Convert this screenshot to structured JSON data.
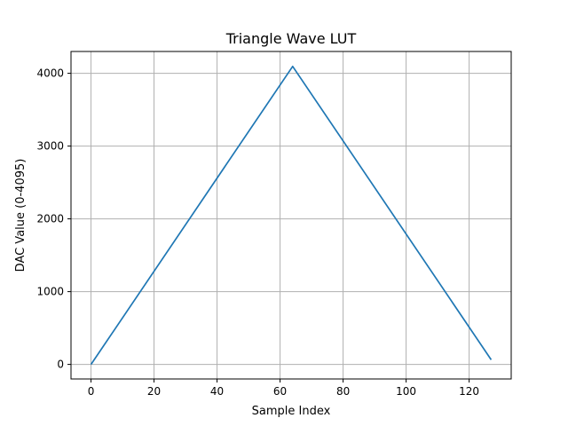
{
  "chart_data": {
    "type": "line",
    "title": "Triangle Wave LUT",
    "xlabel": "Sample Index",
    "ylabel": "DAC Value (0-4095)",
    "xlim": [
      -6.35,
      133.35
    ],
    "ylim": [
      -200,
      4300
    ],
    "xticks": [
      0,
      20,
      40,
      60,
      80,
      100,
      120
    ],
    "yticks": [
      0,
      1000,
      2000,
      3000,
      4000
    ],
    "grid": true,
    "legend": "none",
    "series": [
      {
        "color": "#1f77b4",
        "x": [
          0,
          64,
          127
        ],
        "y": [
          0,
          4095,
          64
        ]
      }
    ]
  }
}
